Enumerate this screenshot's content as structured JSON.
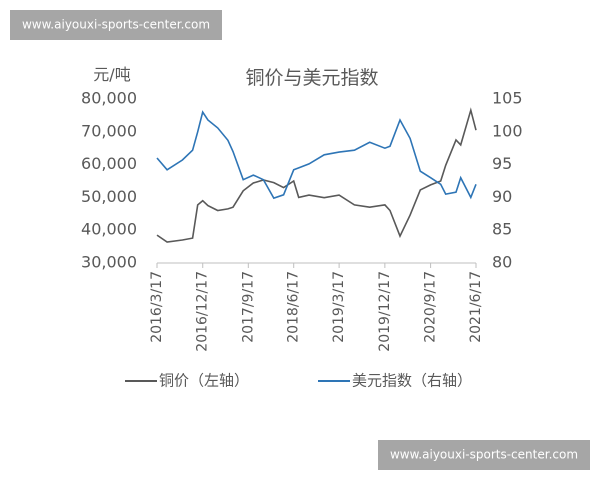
{
  "watermark_top": "www.aiyouxi-sports-center.com",
  "watermark_bottom": "www.aiyouxi-sports-center.com",
  "chart_data": {
    "type": "line",
    "title": "铜价与美元指数",
    "y_unit_label": "元/吨",
    "x": [
      "2016/3/17",
      "2016/5/17",
      "2016/8/17",
      "2016/10/17",
      "2016/11/17",
      "2016/12/17",
      "2017/1/17",
      "2017/3/17",
      "2017/5/17",
      "2017/6/17",
      "2017/8/17",
      "2017/10/17",
      "2017/12/17",
      "2018/2/17",
      "2018/4/17",
      "2018/6/17",
      "2018/7/17",
      "2018/9/17",
      "2018/12/17",
      "2019/3/17",
      "2019/6/17",
      "2019/9/17",
      "2019/12/17",
      "2020/1/17",
      "2020/3/17",
      "2020/5/17",
      "2020/7/17",
      "2020/9/17",
      "2020/11/17",
      "2020/12/17",
      "2021/2/17",
      "2021/3/17",
      "2021/5/17",
      "2021/6/17"
    ],
    "xlim": [
      "2016/3/17",
      "2021/6/17"
    ],
    "xticks": [
      "2016/3/17",
      "2016/12/17",
      "2017/9/17",
      "2018/6/17",
      "2019/3/17",
      "2019/12/17",
      "2020/9/17",
      "2021/6/17"
    ],
    "ylim": [
      30000,
      80000
    ],
    "yticks": [
      {
        "value": 30000,
        "label": "30,000"
      },
      {
        "value": 40000,
        "label": "40,000"
      },
      {
        "value": 50000,
        "label": "50,000"
      },
      {
        "value": 60000,
        "label": "60,000"
      },
      {
        "value": 70000,
        "label": "70,000"
      },
      {
        "value": 80000,
        "label": "80,000"
      }
    ],
    "y2lim": [
      80,
      105
    ],
    "y2ticks": [
      80,
      85,
      90,
      95,
      100,
      105
    ],
    "legend": "bottom",
    "series": [
      {
        "name": "铜价（左轴）",
        "color": "#595959",
        "axis": "y",
        "values": [
          38500,
          36400,
          37000,
          37600,
          47700,
          49000,
          47500,
          46000,
          46500,
          47000,
          52000,
          54400,
          55300,
          54500,
          53000,
          55000,
          50000,
          50700,
          49900,
          50700,
          47700,
          47000,
          47700,
          46000,
          38200,
          44600,
          52300,
          53800,
          55000,
          59800,
          67500,
          66000,
          76600,
          70500
        ]
      },
      {
        "name": "美元指数（右轴）",
        "color": "#2e75b6",
        "axis": "y2",
        "values": [
          96,
          94.2,
          95.7,
          97.2,
          100,
          103,
          101.8,
          100.6,
          98.7,
          97,
          92.7,
          93.4,
          92.7,
          89.9,
          90.4,
          94.2,
          94.5,
          95.1,
          96.5,
          96.9,
          97.2,
          98.4,
          97.5,
          97.8,
          101.8,
          99,
          94,
          93,
          92,
          90.5,
          90.8,
          93,
          90,
          92
        ]
      }
    ]
  }
}
